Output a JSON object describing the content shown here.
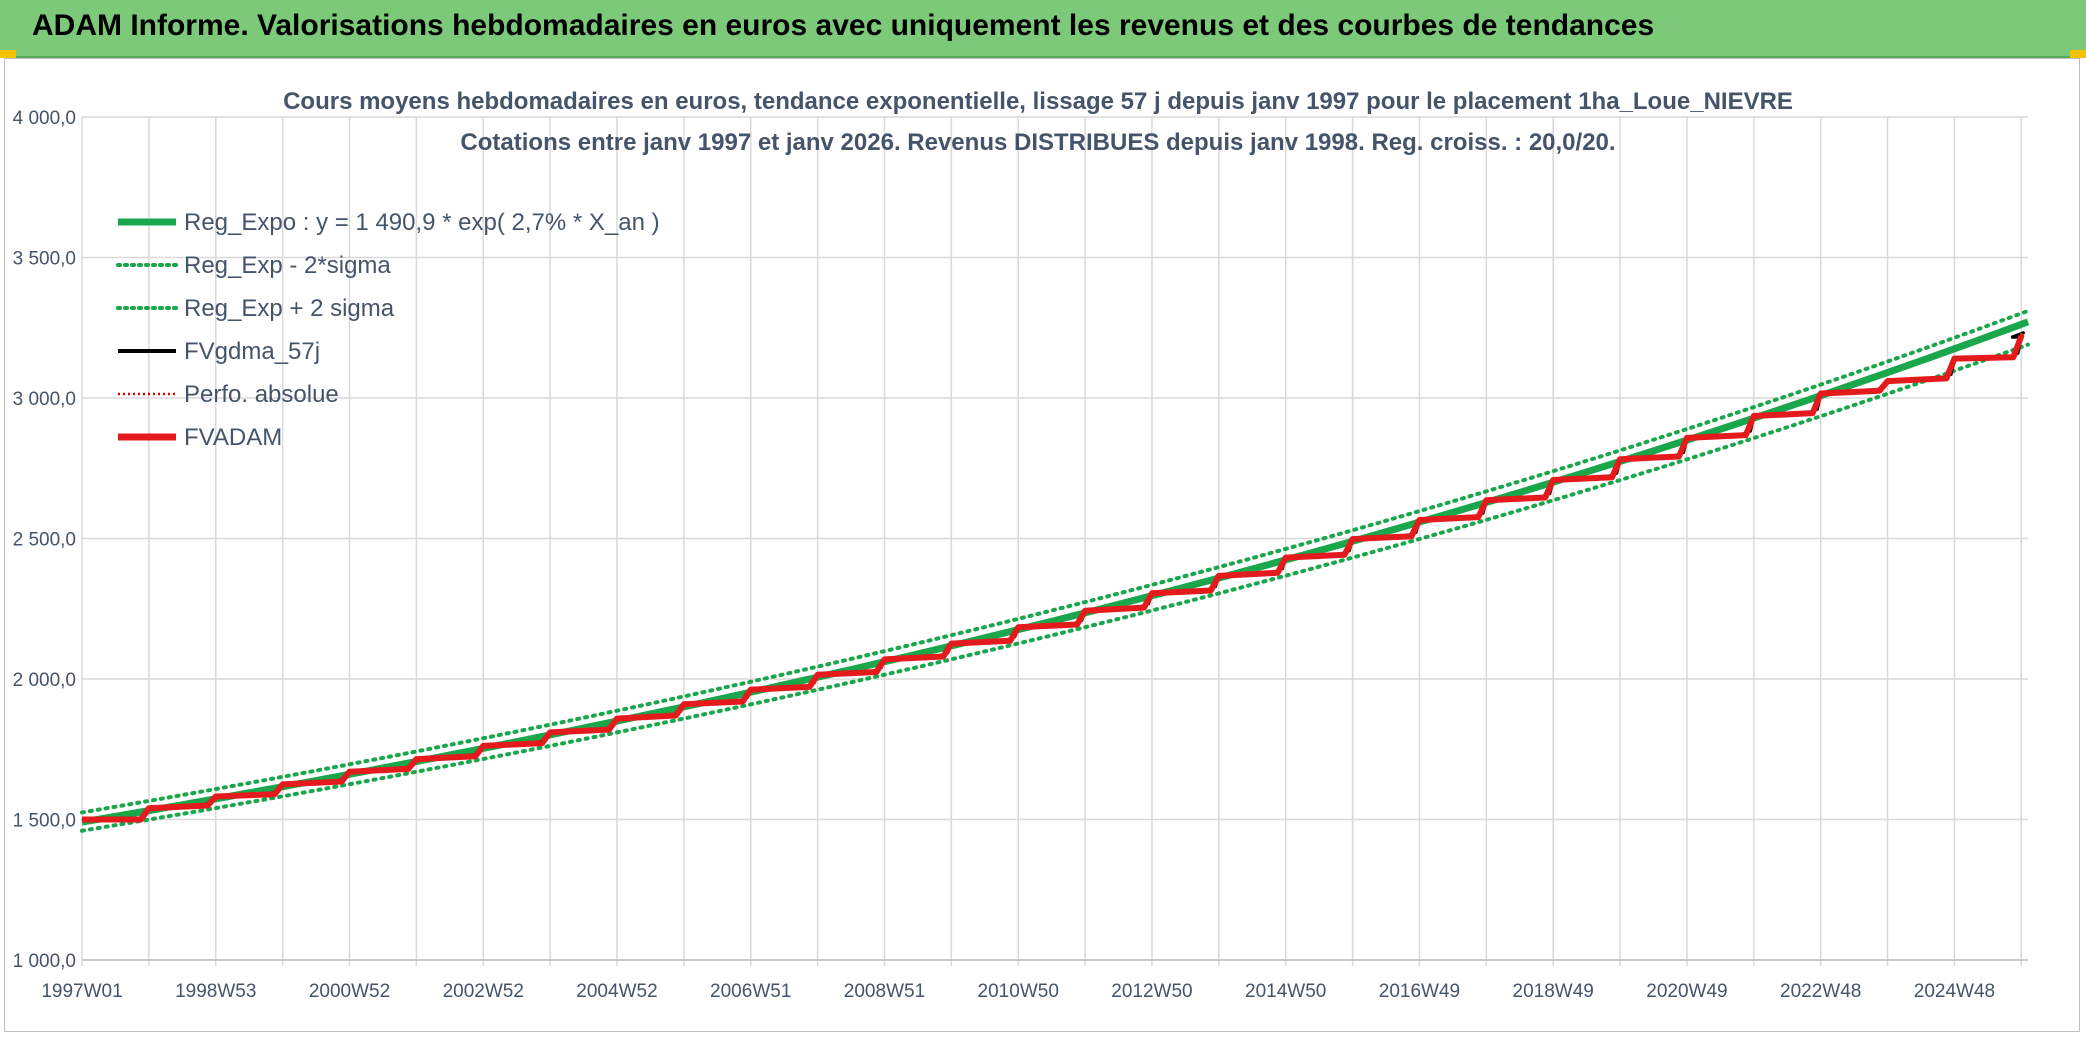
{
  "banner": {
    "title": "ADAM Informe. Valorisations hebdomadaires en euros avec uniquement les revenus et des courbes de tendances"
  },
  "colors": {
    "banner_bg": "#7cc97a",
    "trend": "#1aa64a",
    "band": "#1aa64a",
    "fvgdma": "#000000",
    "perfo": "#e00000",
    "fvadam": "#e41a1c",
    "grid": "#d9d9d9",
    "text": "#44546a"
  },
  "chart_data": {
    "type": "line",
    "title": "Cours moyens hebdomadaires en euros, tendance exponentielle, lissage 57 j depuis janv 1997 pour le placement 1ha_Loue_NIEVRE",
    "subtitle": "Cotations entre janv 1997 et janv 2026. Revenus DISTRIBUES depuis janv 1998. Reg. croiss. : 20,0/20.",
    "xlabel": "",
    "ylabel": "",
    "ylim": [
      1000,
      4000
    ],
    "y_ticks": [
      "1 000,0",
      "1 500,0",
      "2 000,0",
      "2 500,0",
      "3 000,0",
      "3 500,0",
      "4 000,0"
    ],
    "x_tick_labels": [
      "1997W01",
      "1998W53",
      "2000W52",
      "2002W52",
      "2004W52",
      "2006W51",
      "2008W51",
      "2010W50",
      "2012W50",
      "2014W50",
      "2016W49",
      "2018W49",
      "2020W49",
      "2022W48",
      "2024W48"
    ],
    "x_range_years": [
      1997.0,
      2026.1
    ],
    "grid": true,
    "legend_position": "top-left",
    "legend": [
      {
        "name": "Reg_Expo : y = 1 490,9 * exp( 2,7% *  X_an )",
        "style": "solid-thick",
        "color": "#1aa64a"
      },
      {
        "name": "Reg_Exp - 2*sigma",
        "style": "dotted",
        "color": "#1aa64a"
      },
      {
        "name": "Reg_Exp + 2 sigma",
        "style": "dotted",
        "color": "#1aa64a"
      },
      {
        "name": "FVgdma_57j",
        "style": "solid",
        "color": "#000000"
      },
      {
        "name": "Perfo. absolue",
        "style": "dotted-thin",
        "color": "#e00000"
      },
      {
        "name": "FVADAM",
        "style": "solid-thick",
        "color": "#e41a1c"
      }
    ],
    "regression": {
      "a": 1490.9,
      "rate": 0.027
    },
    "band_lower_start_end": [
      1460,
      3190
    ],
    "band_upper_start_end": [
      1525,
      3310
    ],
    "series": [
      {
        "name": "FVADAM",
        "x": [
          1997.0,
          1998.0,
          1999.0,
          2000.0,
          2001.0,
          2002.0,
          2003.0,
          2004.0,
          2005.0,
          2006.0,
          2007.0,
          2008.0,
          2009.0,
          2010.0,
          2011.0,
          2012.0,
          2013.0,
          2014.0,
          2015.0,
          2016.0,
          2017.0,
          2018.0,
          2019.0,
          2020.0,
          2021.0,
          2022.0,
          2023.0,
          2024.0,
          2025.0,
          2026.0
        ],
        "step_start": [
          1500,
          1540,
          1582,
          1625,
          1670,
          1715,
          1762,
          1810,
          1859,
          1910,
          1962,
          2015,
          2070,
          2126,
          2184,
          2243,
          2305,
          2367,
          2432,
          2498,
          2566,
          2636,
          2708,
          2782,
          2858,
          2936,
          3016,
          3060,
          3140,
          3220
        ],
        "step_end": [
          1500,
          1550,
          1590,
          1635,
          1680,
          1725,
          1772,
          1820,
          1870,
          1920,
          1972,
          2025,
          2080,
          2136,
          2194,
          2254,
          2315,
          2378,
          2442,
          2508,
          2576,
          2646,
          2718,
          2792,
          2868,
          2946,
          3026,
          3070,
          3145,
          3220
        ]
      }
    ]
  }
}
